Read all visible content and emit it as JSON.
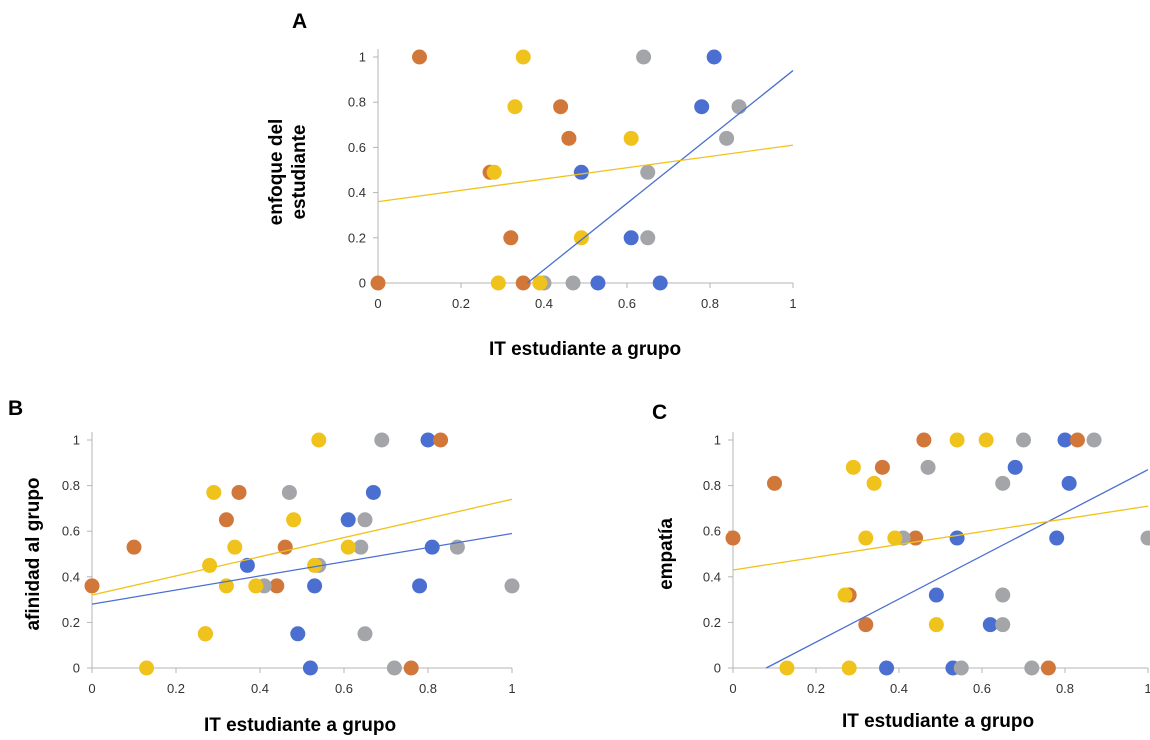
{
  "colors": {
    "blue": "#4a6fd0",
    "orange": "#d2773a",
    "gray": "#a3a5a8",
    "yellow": "#f0c21c",
    "axis": "#b5b5b5"
  },
  "chart_data": [
    {
      "type": "scatter",
      "panel_label": "A",
      "xlabel": "IT estudiante a grupo",
      "ylabel": [
        "enfoque del",
        "estudiante"
      ],
      "xlim": [
        0,
        1
      ],
      "ylim": [
        0,
        1
      ],
      "x_ticks": [
        "0",
        "0.2",
        "0.4",
        "0.6",
        "0.8",
        "1"
      ],
      "y_ticks": [
        "0",
        "0.2",
        "0.4",
        "0.6",
        "0.8",
        "1"
      ],
      "grid": false,
      "series": [
        {
          "color": "blue",
          "points": [
            [
              0.81,
              1.0
            ],
            [
              0.78,
              0.78
            ],
            [
              0.49,
              0.49
            ],
            [
              0.61,
              0.2
            ],
            [
              0.53,
              0.0
            ],
            [
              0.68,
              0.0
            ]
          ]
        },
        {
          "color": "orange",
          "points": [
            [
              0.1,
              1.0
            ],
            [
              0.44,
              0.78
            ],
            [
              0.46,
              0.64
            ],
            [
              0.27,
              0.49
            ],
            [
              0.32,
              0.2
            ],
            [
              0.0,
              0.0
            ],
            [
              0.35,
              0.0
            ]
          ]
        },
        {
          "color": "gray",
          "points": [
            [
              0.64,
              1.0
            ],
            [
              0.87,
              0.78
            ],
            [
              0.84,
              0.64
            ],
            [
              0.65,
              0.49
            ],
            [
              0.65,
              0.2
            ],
            [
              0.4,
              0.0
            ],
            [
              0.47,
              0.0
            ]
          ]
        },
        {
          "color": "yellow",
          "points": [
            [
              0.35,
              1.0
            ],
            [
              0.33,
              0.78
            ],
            [
              0.61,
              0.64
            ],
            [
              0.28,
              0.49
            ],
            [
              0.49,
              0.2
            ],
            [
              0.29,
              0.0
            ],
            [
              0.39,
              0.0
            ]
          ]
        }
      ],
      "trendlines": [
        {
          "color": "blue",
          "from": [
            0.36,
            0.0
          ],
          "to": [
            1.0,
            0.94
          ]
        },
        {
          "color": "yellow",
          "from": [
            0.0,
            0.36
          ],
          "to": [
            1.0,
            0.61
          ]
        }
      ]
    },
    {
      "type": "scatter",
      "panel_label": "B",
      "xlabel": "IT estudiante a grupo",
      "ylabel": [
        "afinidad al grupo"
      ],
      "xlim": [
        0,
        1
      ],
      "ylim": [
        0,
        1
      ],
      "x_ticks": [
        "0",
        "0.2",
        "0.4",
        "0.6",
        "0.8",
        "1"
      ],
      "y_ticks": [
        "0",
        "0.2",
        "0.4",
        "0.6",
        "0.8",
        "1"
      ],
      "grid": false,
      "series": [
        {
          "color": "blue",
          "points": [
            [
              0.8,
              1.0
            ],
            [
              0.67,
              0.77
            ],
            [
              0.61,
              0.65
            ],
            [
              0.81,
              0.53
            ],
            [
              0.37,
              0.45
            ],
            [
              0.53,
              0.36
            ],
            [
              0.78,
              0.36
            ],
            [
              0.49,
              0.15
            ],
            [
              0.52,
              0.0
            ]
          ]
        },
        {
          "color": "orange",
          "points": [
            [
              0.83,
              1.0
            ],
            [
              0.35,
              0.77
            ],
            [
              0.32,
              0.65
            ],
            [
              0.1,
              0.53
            ],
            [
              0.46,
              0.53
            ],
            [
              0.0,
              0.36
            ],
            [
              0.44,
              0.36
            ],
            [
              0.27,
              0.15
            ],
            [
              0.76,
              0.0
            ]
          ]
        },
        {
          "color": "gray",
          "points": [
            [
              0.69,
              1.0
            ],
            [
              0.47,
              0.77
            ],
            [
              0.65,
              0.65
            ],
            [
              0.64,
              0.53
            ],
            [
              0.87,
              0.53
            ],
            [
              0.54,
              0.45
            ],
            [
              0.41,
              0.36
            ],
            [
              1.0,
              0.36
            ],
            [
              0.65,
              0.15
            ],
            [
              0.72,
              0.0
            ]
          ]
        },
        {
          "color": "yellow",
          "points": [
            [
              0.54,
              1.0
            ],
            [
              0.29,
              0.77
            ],
            [
              0.48,
              0.65
            ],
            [
              0.34,
              0.53
            ],
            [
              0.61,
              0.53
            ],
            [
              0.28,
              0.45
            ],
            [
              0.53,
              0.45
            ],
            [
              0.32,
              0.36
            ],
            [
              0.39,
              0.36
            ],
            [
              0.27,
              0.15
            ],
            [
              0.13,
              0.0
            ]
          ]
        }
      ],
      "trendlines": [
        {
          "color": "blue",
          "from": [
            0.0,
            0.28
          ],
          "to": [
            1.0,
            0.59
          ]
        },
        {
          "color": "yellow",
          "from": [
            0.0,
            0.32
          ],
          "to": [
            1.0,
            0.74
          ]
        }
      ]
    },
    {
      "type": "scatter",
      "panel_label": "C",
      "xlabel": "IT estudiante a grupo",
      "ylabel": [
        "empatía"
      ],
      "xlim": [
        0,
        1
      ],
      "ylim": [
        0,
        1
      ],
      "x_ticks": [
        "0",
        "0.2",
        "0.4",
        "0.6",
        "0.8",
        "1"
      ],
      "y_ticks": [
        "0",
        "0.2",
        "0.4",
        "0.6",
        "0.8",
        "1"
      ],
      "grid": false,
      "series": [
        {
          "color": "blue",
          "points": [
            [
              0.8,
              1.0
            ],
            [
              0.68,
              0.88
            ],
            [
              0.81,
              0.81
            ],
            [
              0.78,
              0.57
            ],
            [
              0.54,
              0.57
            ],
            [
              0.49,
              0.32
            ],
            [
              0.62,
              0.19
            ],
            [
              0.37,
              0.0
            ],
            [
              0.53,
              0.0
            ]
          ]
        },
        {
          "color": "orange",
          "points": [
            [
              0.46,
              1.0
            ],
            [
              0.36,
              0.88
            ],
            [
              0.1,
              0.81
            ],
            [
              0.0,
              0.57
            ],
            [
              0.44,
              0.57
            ],
            [
              0.28,
              0.32
            ],
            [
              0.32,
              0.19
            ],
            [
              0.76,
              0.0
            ],
            [
              0.83,
              1.0
            ]
          ]
        },
        {
          "color": "gray",
          "points": [
            [
              0.7,
              1.0
            ],
            [
              0.87,
              1.0
            ],
            [
              0.47,
              0.88
            ],
            [
              0.65,
              0.81
            ],
            [
              0.41,
              0.57
            ],
            [
              1.0,
              0.57
            ],
            [
              0.65,
              0.32
            ],
            [
              0.65,
              0.19
            ],
            [
              0.55,
              0.0
            ],
            [
              0.72,
              0.0
            ]
          ]
        },
        {
          "color": "yellow",
          "points": [
            [
              0.54,
              1.0
            ],
            [
              0.61,
              1.0
            ],
            [
              0.29,
              0.88
            ],
            [
              0.34,
              0.81
            ],
            [
              0.32,
              0.57
            ],
            [
              0.39,
              0.57
            ],
            [
              0.27,
              0.32
            ],
            [
              0.49,
              0.19
            ],
            [
              0.13,
              0.0
            ],
            [
              0.28,
              0.0
            ]
          ]
        }
      ],
      "trendlines": [
        {
          "color": "blue",
          "from": [
            0.08,
            0.0
          ],
          "to": [
            1.0,
            0.87
          ]
        },
        {
          "color": "yellow",
          "from": [
            0.0,
            0.43
          ],
          "to": [
            1.0,
            0.71
          ]
        }
      ]
    }
  ]
}
